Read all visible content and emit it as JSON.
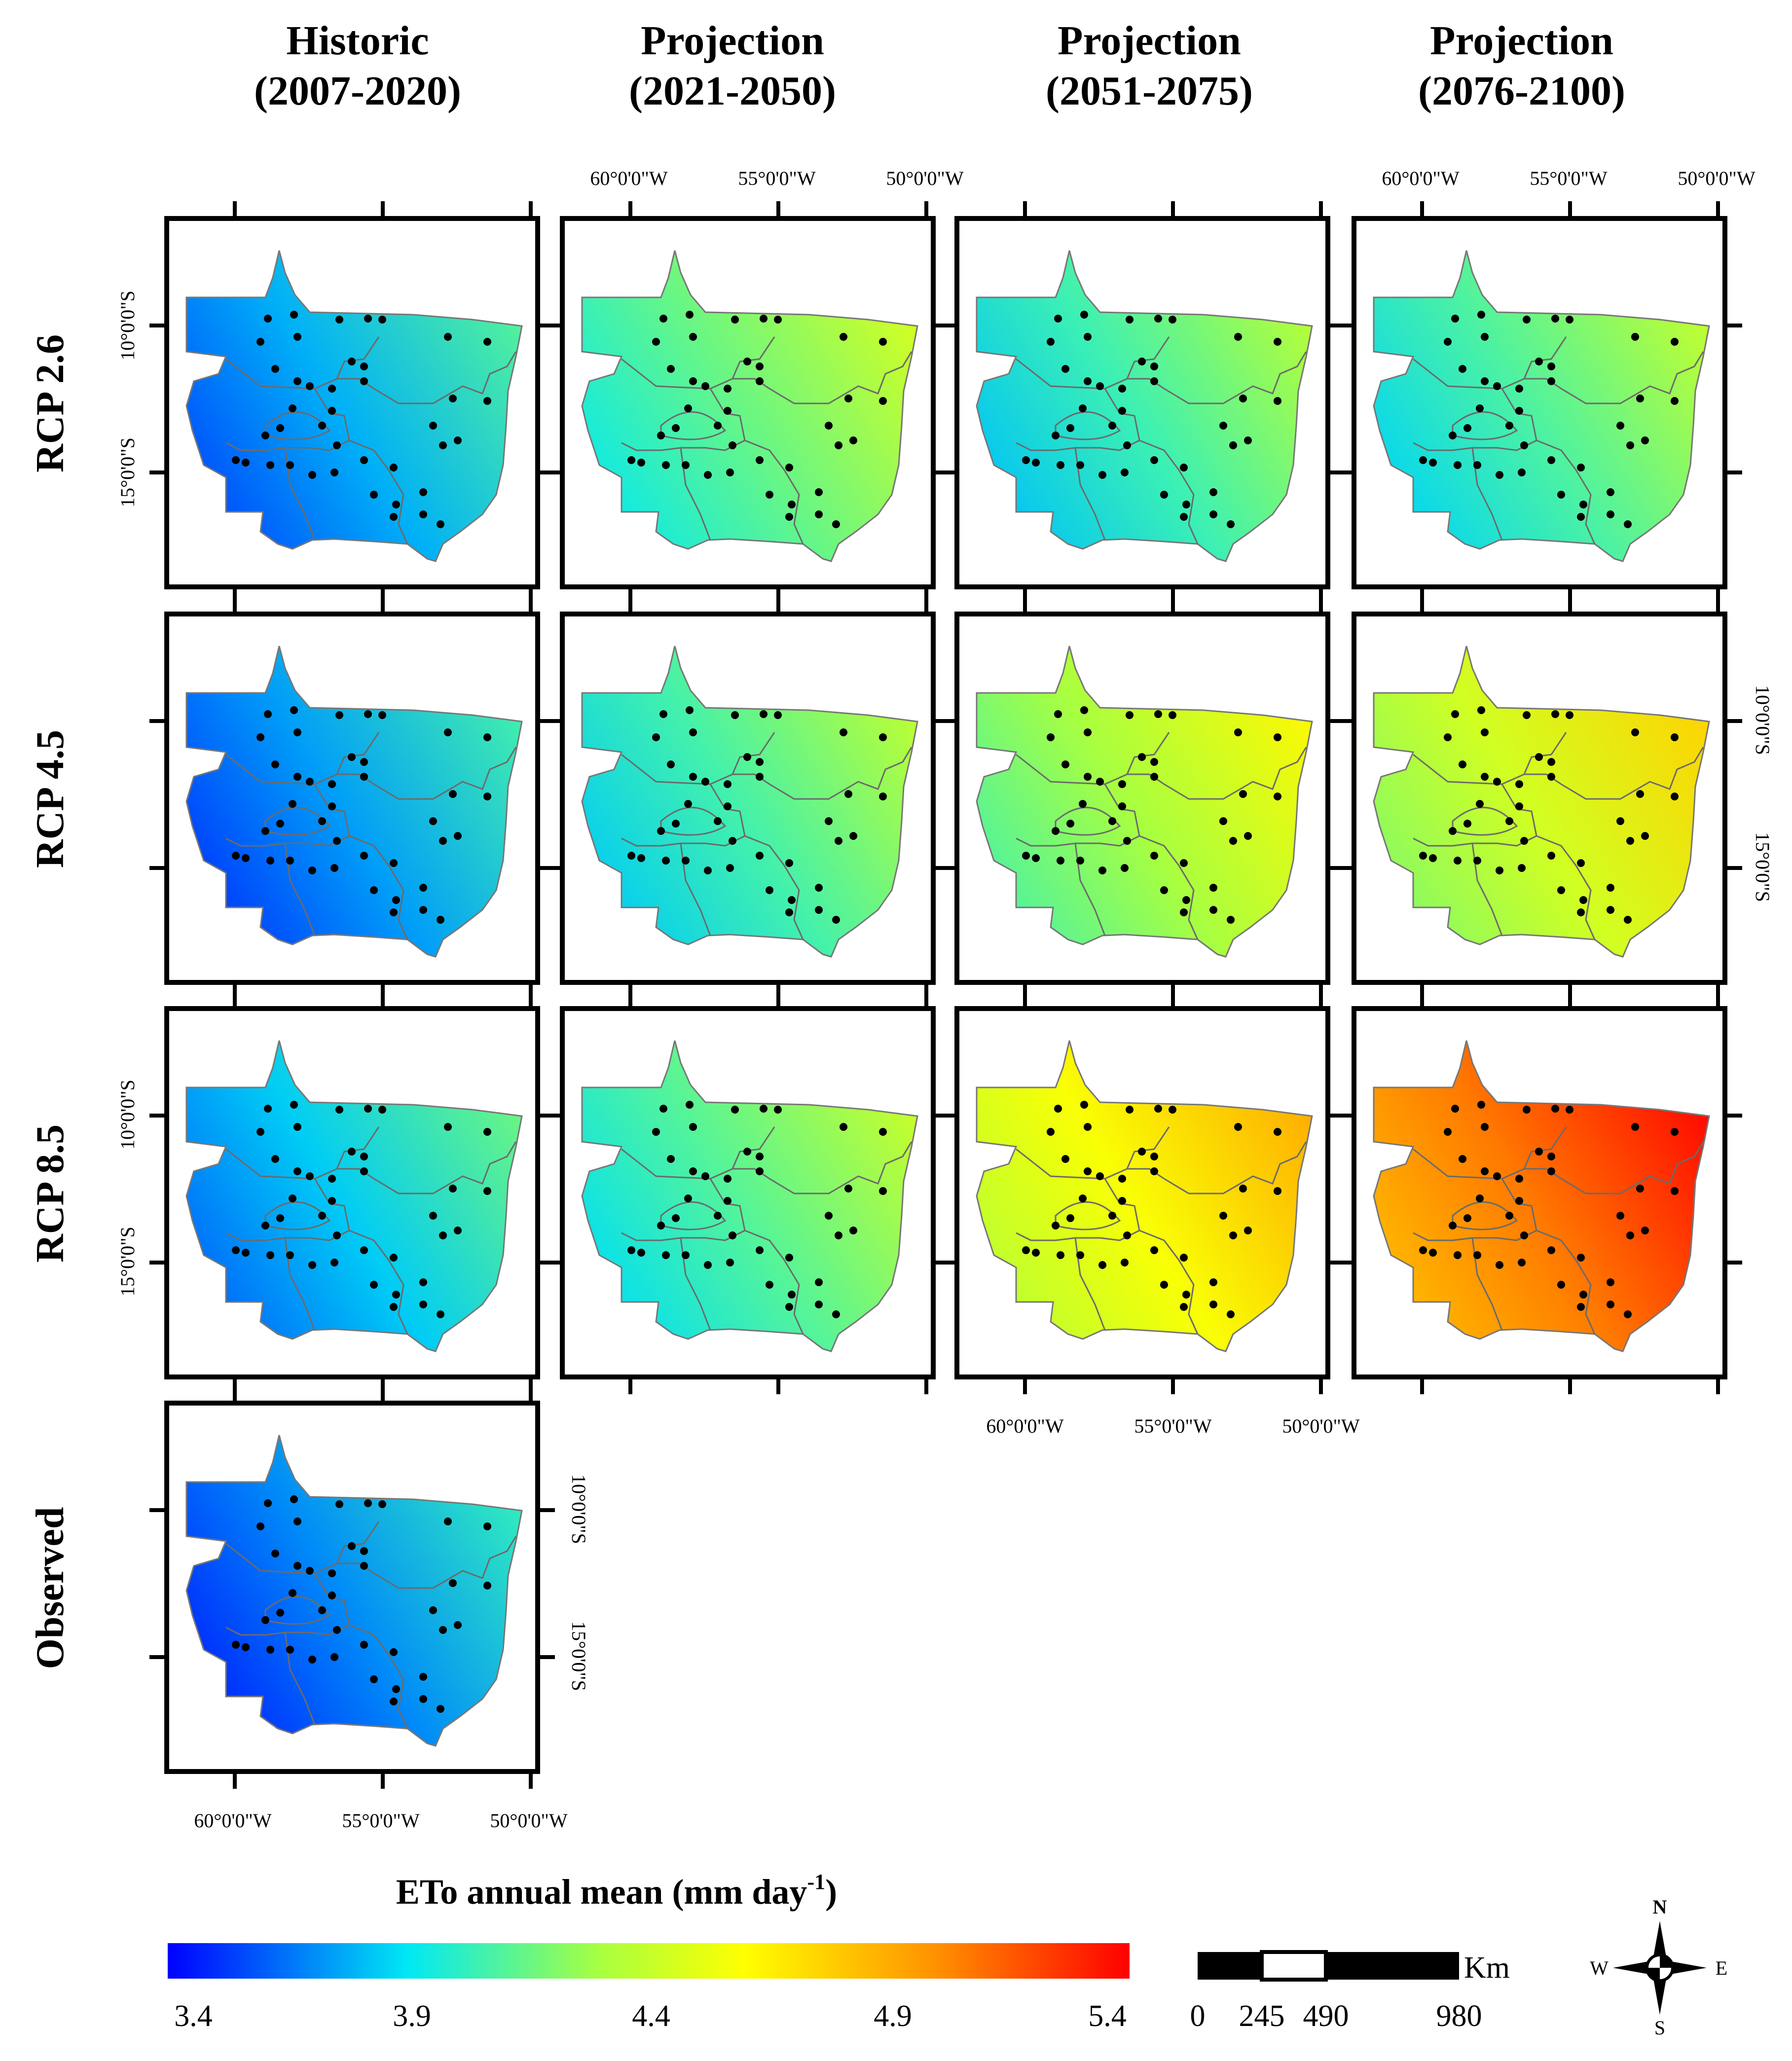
{
  "columns": [
    {
      "line1": "Historic",
      "line2": "(2007-2020)"
    },
    {
      "line1": "Projection",
      "line2": "(2021-2050)"
    },
    {
      "line1": "Projection",
      "line2": "(2051-2075)"
    },
    {
      "line1": "Projection",
      "line2": "(2076-2100)"
    }
  ],
  "rows": [
    "RCP 2.6",
    "RCP 4.5",
    "RCP 8.5",
    "Observed"
  ],
  "lon_ticks": [
    "60°0'0\"W",
    "55°0'0\"W",
    "50°0'0\"W"
  ],
  "lat_ticks": [
    "10°0'0\"S",
    "15°0'0\"S"
  ],
  "panels": [
    {
      "row": 0,
      "col": 0,
      "level": 0.22
    },
    {
      "row": 0,
      "col": 1,
      "level": 0.4
    },
    {
      "row": 0,
      "col": 2,
      "level": 0.35
    },
    {
      "row": 0,
      "col": 3,
      "level": 0.37
    },
    {
      "row": 1,
      "col": 0,
      "level": 0.2
    },
    {
      "row": 1,
      "col": 1,
      "level": 0.36
    },
    {
      "row": 1,
      "col": 2,
      "level": 0.48
    },
    {
      "row": 1,
      "col": 3,
      "level": 0.55
    },
    {
      "row": 2,
      "col": 0,
      "level": 0.25
    },
    {
      "row": 2,
      "col": 1,
      "level": 0.38
    },
    {
      "row": 2,
      "col": 2,
      "level": 0.62
    },
    {
      "row": 2,
      "col": 3,
      "level": 0.86
    },
    {
      "row": 3,
      "col": 0,
      "level": 0.18
    }
  ],
  "legend": {
    "title": "ETo annual mean (mm day",
    "title_sup": "-1",
    "title_end": ")",
    "ticks": [
      "3.4",
      "3.9",
      "4.4",
      "4.9",
      "5.4"
    ],
    "colors": [
      "#0000ff",
      "#00e8f4",
      "#a8ff40",
      "#ffff00",
      "#ff9000",
      "#ff0000"
    ]
  },
  "scale_bar": {
    "unit": "Km",
    "labels": [
      "0",
      "245",
      "490",
      "980"
    ]
  },
  "compass": {
    "n": "N",
    "s": "S",
    "e": "E",
    "w": "W"
  }
}
